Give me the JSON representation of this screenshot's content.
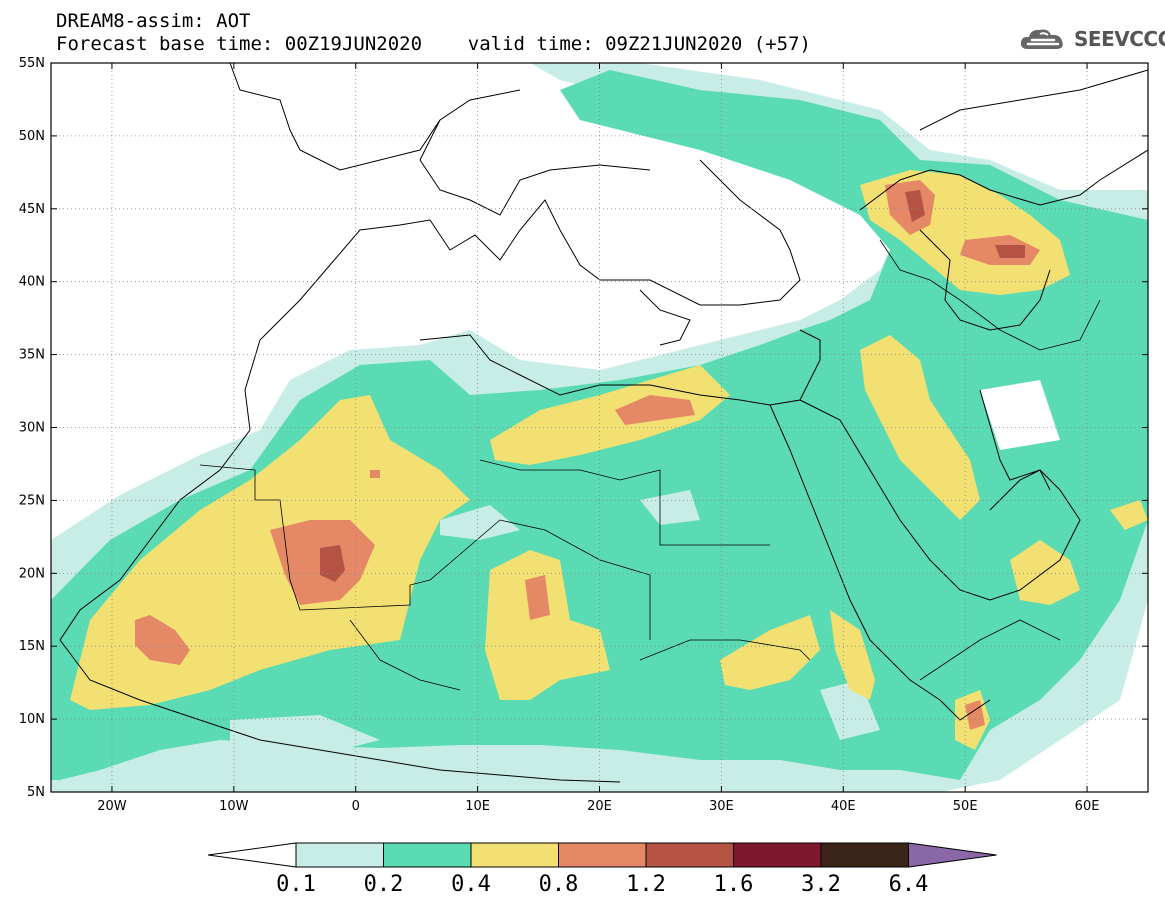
{
  "title": {
    "line1": "DREAM8-assim: AOT",
    "line2": "Forecast base time: 00Z19JUN2020    valid time: 09Z21JUN2020 (+57)"
  },
  "brand": {
    "name": "SEEVCCC",
    "icon": "cloud-logo-icon"
  },
  "map": {
    "variable": "AOT",
    "lat_ticks": [
      "55N",
      "50N",
      "45N",
      "40N",
      "35N",
      "30N",
      "25N",
      "20N",
      "15N",
      "10N",
      "5N"
    ],
    "lon_ticks": [
      "20W",
      "10W",
      "0",
      "10E",
      "20E",
      "30E",
      "40E",
      "50E",
      "60E"
    ],
    "lat_range": [
      5,
      55
    ],
    "lon_range": [
      -25,
      65
    ],
    "grid": "dotted"
  },
  "colorbar": {
    "labels": [
      "0.1",
      "0.2",
      "0.4",
      "0.8",
      "1.2",
      "1.6",
      "3.2",
      "6.4"
    ],
    "colors": [
      "#c7ede6",
      "#5adbb4",
      "#f2e172",
      "#e58866",
      "#b45343",
      "#7e1730",
      "#3b2418"
    ],
    "over_color": "#8a68a8",
    "under_color": "#ffffff"
  }
}
